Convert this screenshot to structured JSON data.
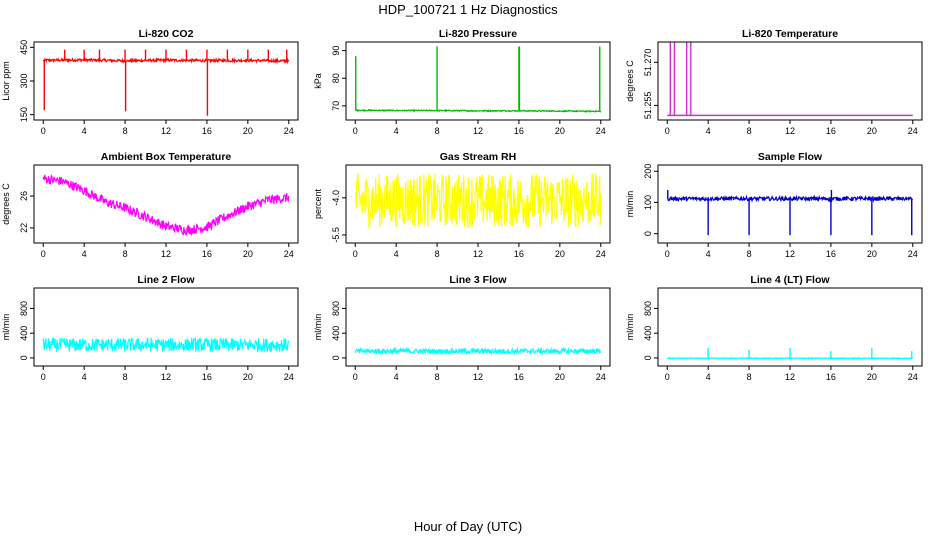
{
  "title": "HDP_100721  1 Hz Diagnostics",
  "xlabel": "Hour of Day (UTC)",
  "chart_data": [
    {
      "type": "line",
      "title": "Li-820 CO2",
      "ylabel": "Licor ppm",
      "color": "#ff0000",
      "xlim": [
        0,
        24
      ],
      "ylim": [
        140,
        460
      ],
      "xticks": [
        0,
        4,
        8,
        12,
        16,
        20,
        24
      ],
      "yticks": [
        150,
        300,
        450
      ],
      "baseline": {
        "x": [
          0,
          4,
          8,
          12,
          16,
          20,
          24
        ],
        "y": [
          392,
          394,
          390,
          393,
          391,
          392,
          389
        ]
      },
      "noise": 6,
      "spikes": [
        {
          "x": 0.1,
          "y": 170
        },
        {
          "x": 2.1,
          "y": 440
        },
        {
          "x": 4.0,
          "y": 440
        },
        {
          "x": 5.5,
          "y": 440
        },
        {
          "x": 8.0,
          "y": 440
        },
        {
          "x": 8.05,
          "y": 165
        },
        {
          "x": 10.0,
          "y": 440
        },
        {
          "x": 12.0,
          "y": 440
        },
        {
          "x": 14.0,
          "y": 440
        },
        {
          "x": 16.0,
          "y": 440
        },
        {
          "x": 16.05,
          "y": 145
        },
        {
          "x": 18.0,
          "y": 440
        },
        {
          "x": 20.0,
          "y": 440
        },
        {
          "x": 22.0,
          "y": 440
        },
        {
          "x": 23.8,
          "y": 440
        }
      ]
    },
    {
      "type": "line",
      "title": "Li-820 Pressure",
      "ylabel": "kPa",
      "color": "#00bb00",
      "xlim": [
        0,
        24
      ],
      "ylim": [
        66,
        92
      ],
      "xticks": [
        0,
        4,
        8,
        12,
        16,
        20,
        24
      ],
      "yticks": [
        70,
        80,
        90
      ],
      "baseline": {
        "x": [
          0,
          4,
          8,
          12,
          16,
          20,
          24
        ],
        "y": [
          68.4,
          68.3,
          68.3,
          68.2,
          68.2,
          68.1,
          68.0
        ]
      },
      "noise": 0.2,
      "spikes": [
        {
          "x": 0.05,
          "y": 88
        },
        {
          "x": 8.0,
          "y": 91.5
        },
        {
          "x": 16.0,
          "y": 91.5
        },
        {
          "x": 16.05,
          "y": 91.5
        },
        {
          "x": 23.9,
          "y": 91.5
        }
      ]
    },
    {
      "type": "line",
      "title": "Li-820 Temperature",
      "ylabel": "degrees C",
      "color": "#cc33cc",
      "xlim": [
        0,
        24
      ],
      "ylim": [
        51.251,
        51.276
      ],
      "xticks": [
        0,
        4,
        8,
        12,
        16,
        20,
        24
      ],
      "yticks": [
        51.255,
        51.27
      ],
      "ytick_labels": [
        "51.255",
        "51.270"
      ],
      "baseline": {
        "x": [
          0,
          24
        ],
        "y": [
          51.2515,
          51.2515
        ]
      },
      "noise": 0,
      "spikes": [
        {
          "x": 0.3,
          "y": 51.278
        },
        {
          "x": 0.7,
          "y": 51.278
        },
        {
          "x": 1.9,
          "y": 51.278
        },
        {
          "x": 2.3,
          "y": 51.278
        }
      ]
    },
    {
      "type": "line",
      "title": "Ambient Box Temperature",
      "ylabel": "degrees C",
      "color": "#ff00ff",
      "xlim": [
        0,
        24
      ],
      "ylim": [
        20.5,
        29.5
      ],
      "xticks": [
        0,
        4,
        8,
        12,
        16,
        20,
        24
      ],
      "yticks": [
        22,
        26
      ],
      "baseline": {
        "x": [
          0,
          2,
          4,
          6,
          8,
          10,
          12,
          14,
          16,
          18,
          20,
          22,
          24
        ],
        "y": [
          28.2,
          27.8,
          26.7,
          25.3,
          24.5,
          23.4,
          22.2,
          21.7,
          22.1,
          23.5,
          24.7,
          25.5,
          25.8
        ]
      },
      "noise": 0.6,
      "spikes": []
    },
    {
      "type": "line",
      "title": "Gas Stream RH",
      "ylabel": "percent",
      "color": "#ffff00",
      "xlim": [
        0,
        24
      ],
      "ylim": [
        -5.7,
        -2.8
      ],
      "xticks": [
        0,
        4,
        8,
        12,
        16,
        20,
        24
      ],
      "yticks": [
        -5.5,
        -4.0
      ],
      "ytick_labels": [
        "-5.5",
        "-4.0"
      ],
      "baseline": {
        "x": [
          0,
          24
        ],
        "y": [
          -4.1,
          -4.1
        ]
      },
      "noise": 1.1,
      "spikes": []
    },
    {
      "type": "line",
      "title": "Sample Flow",
      "ylabel": "ml/min",
      "color": "#0000cc",
      "xlim": [
        0,
        24
      ],
      "ylim": [
        -20,
        210
      ],
      "xticks": [
        0,
        4,
        8,
        12,
        16,
        20,
        24
      ],
      "yticks": [
        0,
        100,
        200
      ],
      "baseline": {
        "x": [
          0,
          24
        ],
        "y": [
          112,
          112
        ]
      },
      "noise": 6,
      "spikes": [
        {
          "x": 0.05,
          "y": 140
        },
        {
          "x": 4.0,
          "y": -5
        },
        {
          "x": 8.0,
          "y": -5
        },
        {
          "x": 12.0,
          "y": -5
        },
        {
          "x": 16.0,
          "y": -5
        },
        {
          "x": 16.05,
          "y": 140
        },
        {
          "x": 20.0,
          "y": -5
        },
        {
          "x": 23.9,
          "y": -5
        }
      ]
    },
    {
      "type": "line",
      "title": "Line 2 Flow",
      "ylabel": "ml/min",
      "color": "#00ffff",
      "xlim": [
        0,
        24
      ],
      "ylim": [
        -80,
        1080
      ],
      "xticks": [
        0,
        4,
        8,
        12,
        16,
        20,
        24
      ],
      "yticks": [
        0,
        400,
        800
      ],
      "baseline": {
        "x": [
          0,
          24
        ],
        "y": [
          210,
          210
        ]
      },
      "noise": 110,
      "spikes": []
    },
    {
      "type": "line",
      "title": "Line 3 Flow",
      "ylabel": "ml/min",
      "color": "#00ffff",
      "xlim": [
        0,
        24
      ],
      "ylim": [
        -80,
        1080
      ],
      "xticks": [
        0,
        4,
        8,
        12,
        16,
        20,
        24
      ],
      "yticks": [
        0,
        400,
        800
      ],
      "baseline": {
        "x": [
          0,
          24
        ],
        "y": [
          110,
          110
        ]
      },
      "noise": 40,
      "spikes": []
    },
    {
      "type": "line",
      "title": "Line 4 (LT) Flow",
      "ylabel": "ml/min",
      "color": "#00ffff",
      "xlim": [
        0,
        24
      ],
      "ylim": [
        -80,
        1080
      ],
      "xticks": [
        0,
        4,
        8,
        12,
        16,
        20,
        24
      ],
      "yticks": [
        0,
        400,
        800
      ],
      "baseline": {
        "x": [
          0,
          24
        ],
        "y": [
          -5,
          -5
        ]
      },
      "noise": 6,
      "spikes": [
        {
          "x": 4.0,
          "y": 160
        },
        {
          "x": 8.0,
          "y": 130
        },
        {
          "x": 12.0,
          "y": 160
        },
        {
          "x": 16.0,
          "y": 110
        },
        {
          "x": 20.0,
          "y": 160
        },
        {
          "x": 23.9,
          "y": 110
        }
      ]
    }
  ]
}
